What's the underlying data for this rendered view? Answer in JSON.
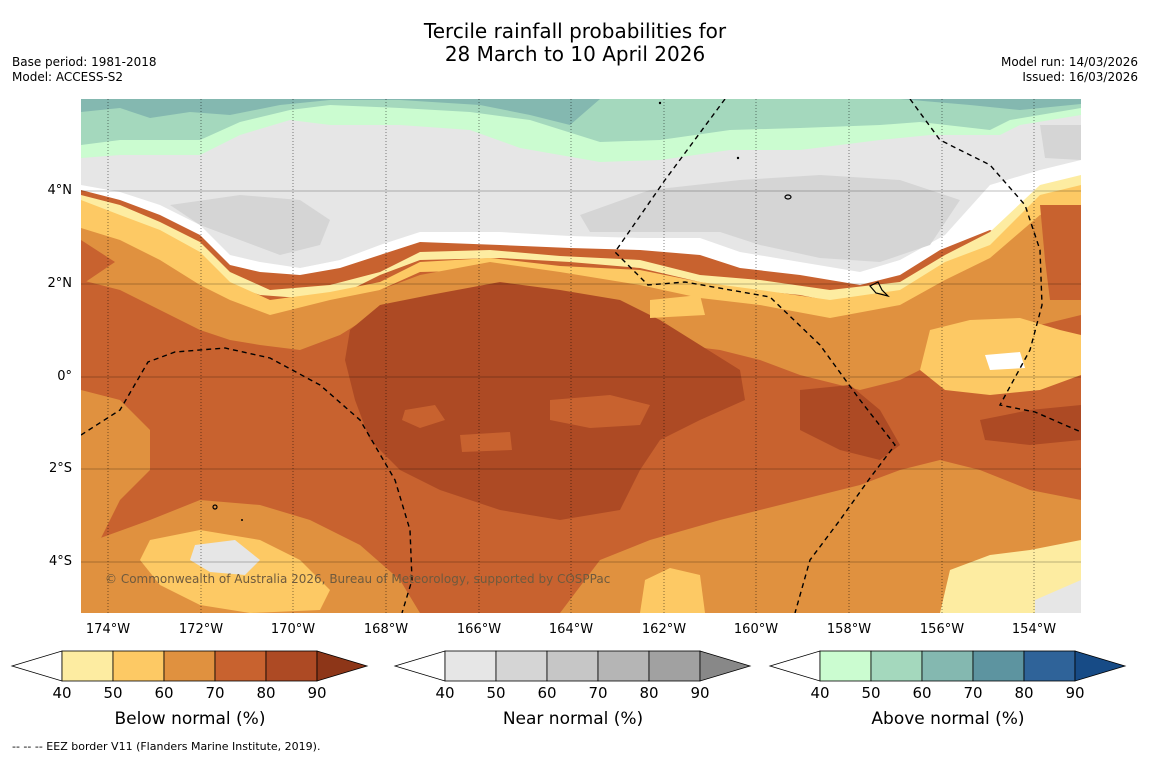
{
  "title_line1": "Tercile rainfall probabilities for",
  "title_line2": "28 March to 10 April 2026",
  "base_period": "Base period: 1981-2018",
  "model": "Model: ACCESS-S2",
  "model_run": "Model run: 14/03/2026",
  "issued": "Issued: 16/03/2026",
  "lat_ticks": [
    "4°N",
    "2°N",
    "0°",
    "2°S",
    "4°S"
  ],
  "lon_ticks": [
    "174°W",
    "172°W",
    "170°W",
    "168°W",
    "166°W",
    "164°W",
    "162°W",
    "160°W",
    "158°W",
    "156°W",
    "154°W"
  ],
  "copyright": "© Commonwealth of Australia 2026, Bureau of Meteorology, supported by COSPPac",
  "colorbars": [
    {
      "label": "Below normal (%)",
      "ticks": [
        "40",
        "50",
        "60",
        "70",
        "80",
        "90"
      ],
      "colors": [
        "#ffffff",
        "#fdeca1",
        "#fdc964",
        "#e0913f",
        "#c8622f",
        "#ad4a24",
        "#8d3618"
      ]
    },
    {
      "label": "Near normal (%)",
      "ticks": [
        "40",
        "50",
        "60",
        "70",
        "80",
        "90"
      ],
      "colors": [
        "#ffffff",
        "#e6e6e6",
        "#d5d5d5",
        "#c6c6c6",
        "#b5b5b5",
        "#a1a1a1",
        "#888888"
      ]
    },
    {
      "label": "Above normal (%)",
      "ticks": [
        "40",
        "50",
        "60",
        "70",
        "80",
        "90"
      ],
      "colors": [
        "#ffffff",
        "#cbfcd0",
        "#a4d8bd",
        "#84b8b0",
        "#5d94a0",
        "#2f6399",
        "#174b86"
      ]
    }
  ],
  "eez_note": "--  --  -- EEZ border V11 (Flanders Marine Institute, 2019)."
}
